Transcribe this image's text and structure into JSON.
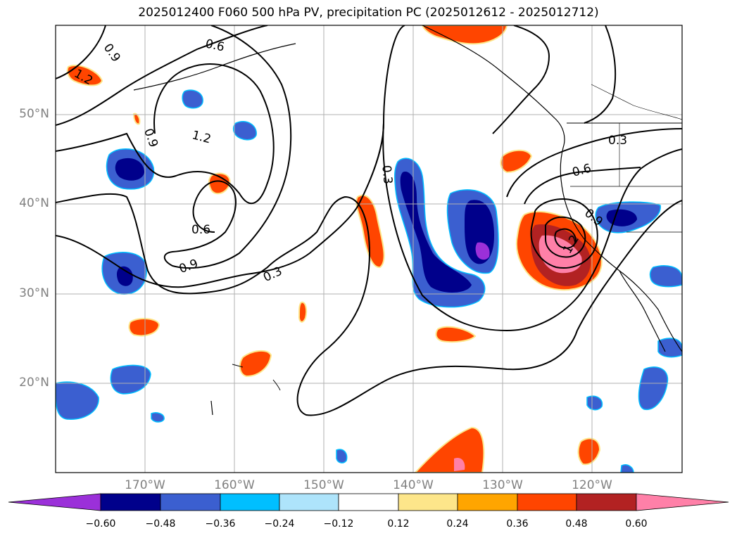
{
  "title": "2025012400 F060 500 hPa PV, precipitation PC (2025012612 - 2025012712)",
  "map": {
    "lat_labels": [
      "50°N",
      "40°N",
      "30°N",
      "20°N"
    ],
    "lon_labels": [
      "170°W",
      "160°W",
      "150°W",
      "140°W",
      "130°W",
      "120°W"
    ],
    "contour_labels": [
      "0.9",
      "0.6",
      "1.2",
      "0.9",
      "1.2",
      "0.6",
      "0.9",
      "0.3",
      "0.3",
      "0.3",
      "0.6",
      "0.9",
      "1.2"
    ],
    "contour_color": "#000000",
    "grid": true
  },
  "colorbar": {
    "ticks": [
      "−0.60",
      "−0.48",
      "−0.36",
      "−0.24",
      "−0.12",
      "0.12",
      "0.24",
      "0.36",
      "0.48",
      "0.60"
    ],
    "colors": [
      "#9b30d9",
      "#00008b",
      "#3b5fd0",
      "#00bfff",
      "#aee4fb",
      "#ffffff",
      "#fde68a",
      "#ffa500",
      "#ff4500",
      "#b22222",
      "#ff80a8"
    ]
  }
}
